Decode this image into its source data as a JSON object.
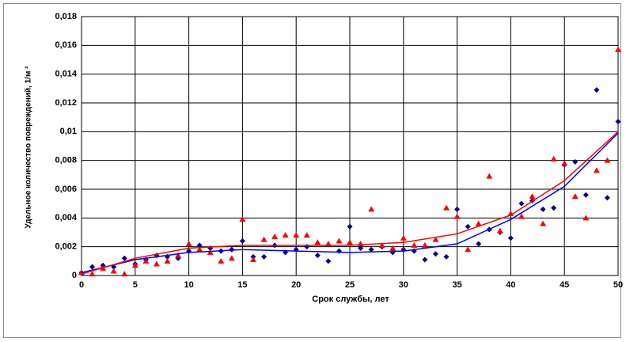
{
  "chart_data": {
    "type": "scatter",
    "xlabel": "Срок службы, лет",
    "ylabel": "Удельное количество повреждений, 1/м ²",
    "x": [
      0,
      1,
      2,
      3,
      4,
      5,
      6,
      7,
      8,
      9,
      10,
      11,
      12,
      13,
      14,
      15,
      16,
      17,
      18,
      19,
      20,
      21,
      22,
      23,
      24,
      25,
      26,
      27,
      28,
      29,
      30,
      31,
      32,
      33,
      34,
      35,
      36,
      37,
      38,
      39,
      40,
      41,
      42,
      43,
      44,
      45,
      46,
      47,
      48,
      49,
      50
    ],
    "series": [
      {
        "color": "#00008b",
        "marker": "diamond",
        "values": [
          0.0002,
          0.0006,
          0.0007,
          0.0006,
          0.0012,
          0.0008,
          0.0011,
          0.0014,
          0.0013,
          0.0012,
          0.0017,
          0.0021,
          0.0019,
          0.0017,
          0.0018,
          0.0024,
          0.0013,
          0.0013,
          0.0021,
          0.0016,
          0.0018,
          0.002,
          0.0014,
          0.001,
          0.0017,
          0.0034,
          0.0019,
          0.0018,
          0.002,
          0.0016,
          0.0018,
          0.0017,
          0.0011,
          0.0015,
          0.0013,
          0.0046,
          0.0034,
          0.0022,
          0.0032,
          0.003,
          0.0026,
          0.005,
          0.0052,
          0.0046,
          0.0047,
          0.0077,
          0.0079,
          0.0056,
          0.0129,
          0.0054,
          0.0107
        ]
      },
      {
        "color": "#ff0000",
        "marker": "triangle",
        "values": [
          0.0002,
          0.0001,
          0.0005,
          0.0003,
          0.0001,
          0.0007,
          0.001,
          0.0008,
          0.001,
          0.0014,
          0.0022,
          0.0018,
          0.0016,
          0.001,
          0.0012,
          0.0039,
          0.0011,
          0.0025,
          0.0027,
          0.0028,
          0.0028,
          0.0028,
          0.0023,
          0.0022,
          0.0024,
          0.0023,
          0.0022,
          0.0046,
          0.0021,
          0.0019,
          0.0026,
          0.0021,
          0.0021,
          0.0025,
          0.0047,
          0.0041,
          0.0018,
          0.0036,
          0.0069,
          0.0031,
          0.0043,
          0.0041,
          0.0055,
          0.0036,
          0.0081,
          0.0078,
          0.0055,
          0.004,
          0.0073,
          0.008,
          0.0157
        ]
      }
    ],
    "trendlines": [
      {
        "color": "#0000ff",
        "x": [
          0,
          5,
          10,
          15,
          20,
          25,
          30,
          35,
          40,
          45,
          50
        ],
        "values": [
          0.0002,
          0.0011,
          0.0016,
          0.0018,
          0.0017,
          0.0016,
          0.0017,
          0.0022,
          0.0039,
          0.0062,
          0.0099
        ]
      },
      {
        "color": "#ff0000",
        "x": [
          0,
          5,
          10,
          15,
          20,
          25,
          30,
          35,
          40,
          45,
          50
        ],
        "values": [
          0.0001,
          0.0012,
          0.0019,
          0.0021,
          0.0021,
          0.0021,
          0.0023,
          0.0029,
          0.0042,
          0.0066,
          0.01
        ]
      }
    ],
    "xlim": [
      0,
      50
    ],
    "xticks": [
      0,
      5,
      10,
      15,
      20,
      25,
      30,
      35,
      40,
      45,
      50
    ],
    "ylim": [
      0,
      0.018
    ],
    "yticks": [
      0,
      {
        "value": 0.002,
        "label": "0,002"
      },
      {
        "value": 0.004,
        "label": "0,004"
      },
      {
        "value": 0.006,
        "label": "0,006"
      },
      {
        "value": 0.008,
        "label": "0,008"
      },
      {
        "value": 0.01,
        "label": "0,01"
      },
      {
        "value": 0.012,
        "label": "0,012"
      },
      {
        "value": 0.014,
        "label": "0,014"
      },
      {
        "value": 0.016,
        "label": "0,016"
      },
      {
        "value": 0.018,
        "label": "0,018"
      }
    ],
    "grid": true
  }
}
